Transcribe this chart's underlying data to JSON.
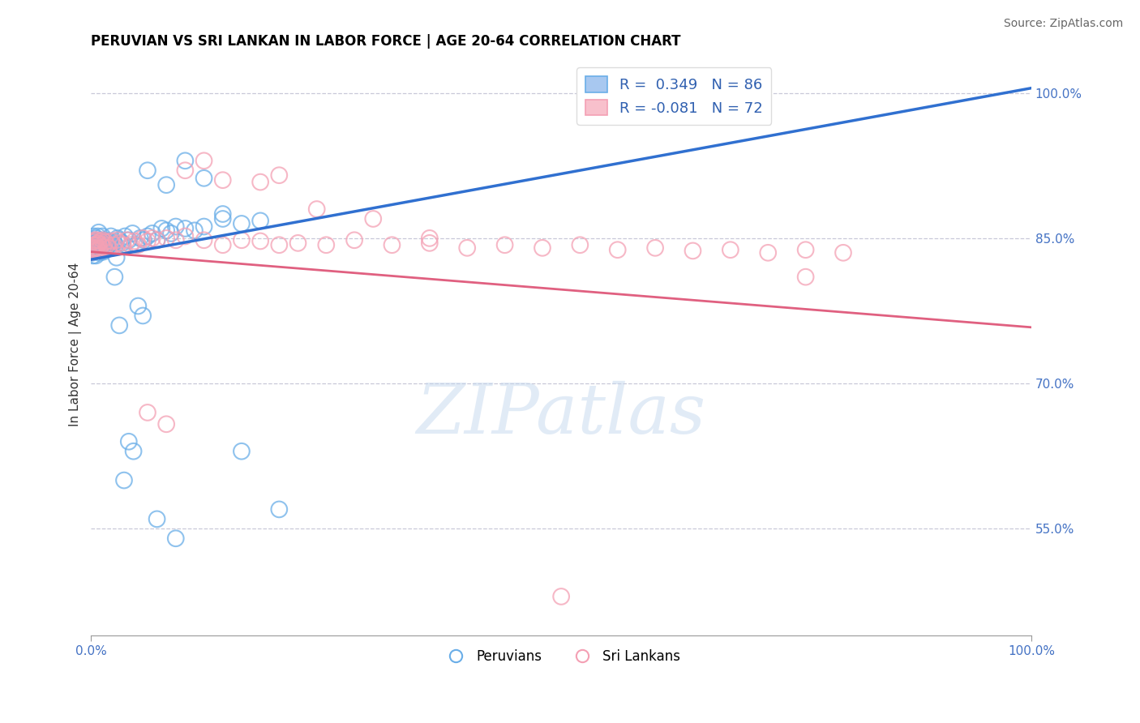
{
  "title": "PERUVIAN VS SRI LANKAN IN LABOR FORCE | AGE 20-64 CORRELATION CHART",
  "source_text": "Source: ZipAtlas.com",
  "ylabel": "In Labor Force | Age 20-64",
  "xlim": [
    0.0,
    1.0
  ],
  "ylim": [
    0.44,
    1.04
  ],
  "ytick_vals": [
    0.55,
    0.7,
    0.85,
    1.0
  ],
  "yticklabels": [
    "55.0%",
    "70.0%",
    "85.0%",
    "100.0%"
  ],
  "legend_blue_label": "R =  0.349   N = 86",
  "legend_pink_label": "R = -0.081   N = 72",
  "blue_edge_color": "#6aaee8",
  "pink_edge_color": "#f4a0b4",
  "blue_line_color": "#3070d0",
  "pink_line_color": "#e06080",
  "blue_legend_face": "#a8c8f0",
  "pink_legend_face": "#f8c0cc",
  "watermark_text": "ZIPatlas",
  "grid_color": "#c8c8d8",
  "title_fontsize": 12,
  "blue_line_y0": 0.828,
  "blue_line_y1": 1.005,
  "pink_line_y0": 0.836,
  "pink_line_y1": 0.758,
  "blue_x": [
    0.001,
    0.001,
    0.001,
    0.002,
    0.002,
    0.002,
    0.002,
    0.003,
    0.003,
    0.003,
    0.003,
    0.004,
    0.004,
    0.004,
    0.005,
    0.005,
    0.005,
    0.006,
    0.006,
    0.006,
    0.007,
    0.007,
    0.007,
    0.008,
    0.008,
    0.009,
    0.009,
    0.01,
    0.01,
    0.011,
    0.011,
    0.012,
    0.012,
    0.013,
    0.013,
    0.014,
    0.015,
    0.015,
    0.016,
    0.017,
    0.018,
    0.019,
    0.02,
    0.021,
    0.022,
    0.024,
    0.026,
    0.028,
    0.03,
    0.033,
    0.036,
    0.04,
    0.044,
    0.048,
    0.052,
    0.056,
    0.06,
    0.065,
    0.07,
    0.075,
    0.08,
    0.085,
    0.09,
    0.1,
    0.11,
    0.12,
    0.14,
    0.16,
    0.18,
    0.06,
    0.08,
    0.1,
    0.12,
    0.14,
    0.07,
    0.09,
    0.03,
    0.035,
    0.04,
    0.045,
    0.025,
    0.027,
    0.05,
    0.055,
    0.16,
    0.2
  ],
  "blue_y": [
    0.84,
    0.845,
    0.835,
    0.843,
    0.838,
    0.847,
    0.832,
    0.848,
    0.836,
    0.844,
    0.852,
    0.837,
    0.846,
    0.841,
    0.839,
    0.85,
    0.832,
    0.847,
    0.838,
    0.843,
    0.845,
    0.852,
    0.837,
    0.843,
    0.856,
    0.841,
    0.835,
    0.848,
    0.839,
    0.844,
    0.837,
    0.846,
    0.852,
    0.84,
    0.836,
    0.843,
    0.848,
    0.838,
    0.845,
    0.841,
    0.839,
    0.847,
    0.844,
    0.852,
    0.84,
    0.846,
    0.843,
    0.85,
    0.848,
    0.845,
    0.852,
    0.848,
    0.855,
    0.843,
    0.85,
    0.848,
    0.852,
    0.855,
    0.848,
    0.86,
    0.858,
    0.855,
    0.862,
    0.86,
    0.858,
    0.862,
    0.87,
    0.865,
    0.868,
    0.92,
    0.905,
    0.93,
    0.912,
    0.875,
    0.56,
    0.54,
    0.76,
    0.6,
    0.64,
    0.63,
    0.81,
    0.83,
    0.78,
    0.77,
    0.63,
    0.57
  ],
  "pink_x": [
    0.001,
    0.001,
    0.002,
    0.002,
    0.003,
    0.003,
    0.004,
    0.004,
    0.005,
    0.005,
    0.006,
    0.006,
    0.007,
    0.007,
    0.008,
    0.009,
    0.01,
    0.011,
    0.012,
    0.013,
    0.015,
    0.017,
    0.019,
    0.021,
    0.024,
    0.027,
    0.03,
    0.034,
    0.038,
    0.042,
    0.046,
    0.05,
    0.055,
    0.06,
    0.065,
    0.07,
    0.08,
    0.09,
    0.1,
    0.12,
    0.14,
    0.16,
    0.18,
    0.2,
    0.22,
    0.25,
    0.28,
    0.32,
    0.36,
    0.4,
    0.44,
    0.48,
    0.52,
    0.56,
    0.6,
    0.64,
    0.68,
    0.72,
    0.76,
    0.8,
    0.06,
    0.08,
    0.1,
    0.12,
    0.14,
    0.18,
    0.2,
    0.24,
    0.3,
    0.36,
    0.5,
    0.76
  ],
  "pink_y": [
    0.84,
    0.836,
    0.843,
    0.838,
    0.846,
    0.84,
    0.843,
    0.848,
    0.837,
    0.843,
    0.848,
    0.84,
    0.845,
    0.838,
    0.844,
    0.839,
    0.847,
    0.843,
    0.848,
    0.841,
    0.846,
    0.843,
    0.84,
    0.847,
    0.843,
    0.848,
    0.845,
    0.843,
    0.848,
    0.843,
    0.847,
    0.843,
    0.85,
    0.847,
    0.85,
    0.848,
    0.85,
    0.848,
    0.852,
    0.848,
    0.843,
    0.848,
    0.847,
    0.843,
    0.845,
    0.843,
    0.848,
    0.843,
    0.845,
    0.84,
    0.843,
    0.84,
    0.843,
    0.838,
    0.84,
    0.837,
    0.838,
    0.835,
    0.838,
    0.835,
    0.67,
    0.658,
    0.92,
    0.93,
    0.91,
    0.908,
    0.915,
    0.88,
    0.87,
    0.85,
    0.48,
    0.81
  ]
}
